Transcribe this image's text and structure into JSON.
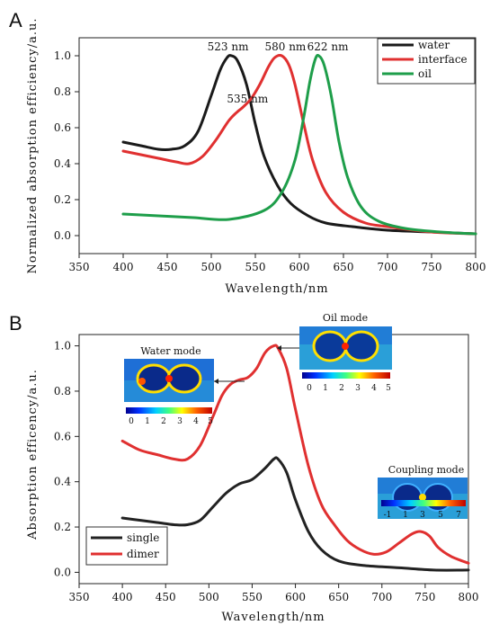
{
  "panels": [
    {
      "id": "A",
      "label": "A"
    },
    {
      "id": "B",
      "label": "B"
    }
  ],
  "chart_data": [
    {
      "panel": "A",
      "type": "line",
      "xlabel": "Wavelength/nm",
      "ylabel": "Normalized absorption efficiency/a.u.",
      "xlim": [
        350,
        800
      ],
      "ylim": [
        -0.1,
        1.1
      ],
      "xticks": [
        350,
        400,
        450,
        500,
        550,
        600,
        650,
        700,
        750,
        800
      ],
      "yticks": [
        0.0,
        0.2,
        0.4,
        0.6,
        0.8,
        1.0
      ],
      "ytick_labels": [
        "0.0",
        "0.2",
        "0.4",
        "0.6",
        "0.8",
        "1.0"
      ],
      "legend_position": "top-right",
      "series": [
        {
          "name": "water",
          "color": "#1a1a1a",
          "x": [
            400,
            420,
            440,
            455,
            470,
            485,
            500,
            510,
            518,
            523,
            530,
            540,
            550,
            560,
            575,
            590,
            610,
            630,
            660,
            700,
            750,
            800
          ],
          "y": [
            0.52,
            0.5,
            0.48,
            0.48,
            0.5,
            0.58,
            0.78,
            0.92,
            0.99,
            1.0,
            0.97,
            0.84,
            0.62,
            0.44,
            0.28,
            0.18,
            0.11,
            0.07,
            0.05,
            0.03,
            0.02,
            0.01
          ]
        },
        {
          "name": "interface",
          "color": "#e03030",
          "x": [
            400,
            420,
            440,
            460,
            475,
            490,
            505,
            520,
            530,
            535,
            545,
            555,
            565,
            572,
            580,
            588,
            595,
            605,
            615,
            630,
            650,
            675,
            700,
            750,
            800
          ],
          "y": [
            0.47,
            0.45,
            0.43,
            0.41,
            0.4,
            0.44,
            0.53,
            0.64,
            0.69,
            0.71,
            0.76,
            0.84,
            0.94,
            0.99,
            1.0,
            0.95,
            0.84,
            0.62,
            0.42,
            0.24,
            0.13,
            0.07,
            0.05,
            0.02,
            0.01
          ]
        },
        {
          "name": "oil",
          "color": "#1e9e4a",
          "x": [
            400,
            440,
            480,
            520,
            560,
            580,
            595,
            605,
            612,
            618,
            622,
            628,
            636,
            645,
            655,
            670,
            690,
            720,
            760,
            800
          ],
          "y": [
            0.12,
            0.11,
            0.1,
            0.09,
            0.14,
            0.24,
            0.42,
            0.66,
            0.86,
            0.98,
            1.0,
            0.95,
            0.78,
            0.52,
            0.32,
            0.16,
            0.08,
            0.04,
            0.02,
            0.01
          ]
        }
      ],
      "annotations": [
        {
          "text": "523 nm",
          "x": 523,
          "y": 1.0
        },
        {
          "text": "580 nm",
          "x": 580,
          "y": 1.0
        },
        {
          "text": "622 nm",
          "x": 622,
          "y": 1.0
        },
        {
          "text": "535 nm",
          "x": 535,
          "y": 0.75
        }
      ]
    },
    {
      "panel": "B",
      "type": "line",
      "xlabel": "Wavelength/nm",
      "ylabel": "Absorption efficency/a.u.",
      "xlim": [
        350,
        800
      ],
      "ylim": [
        -0.05,
        1.05
      ],
      "xticks": [
        350,
        400,
        450,
        500,
        550,
        600,
        650,
        700,
        750,
        800
      ],
      "yticks": [
        0.0,
        0.2,
        0.4,
        0.6,
        0.8,
        1.0
      ],
      "ytick_labels": [
        "0.0",
        "0.2",
        "0.4",
        "0.6",
        "0.8",
        "1.0"
      ],
      "legend_position": "bottom-left",
      "series": [
        {
          "name": "single",
          "color": "#222222",
          "x": [
            400,
            420,
            440,
            460,
            475,
            490,
            505,
            520,
            535,
            550,
            565,
            575,
            580,
            590,
            600,
            615,
            630,
            650,
            680,
            720,
            760,
            800
          ],
          "y": [
            0.24,
            0.23,
            0.22,
            0.21,
            0.21,
            0.23,
            0.29,
            0.35,
            0.39,
            0.41,
            0.46,
            0.5,
            0.5,
            0.44,
            0.32,
            0.18,
            0.1,
            0.05,
            0.03,
            0.02,
            0.01,
            0.01
          ]
        },
        {
          "name": "dimer",
          "color": "#e03030",
          "x": [
            400,
            420,
            440,
            460,
            475,
            490,
            505,
            515,
            525,
            535,
            545,
            555,
            565,
            575,
            580,
            590,
            600,
            615,
            630,
            645,
            660,
            675,
            690,
            705,
            720,
            735,
            745,
            755,
            765,
            780,
            800
          ],
          "y": [
            0.58,
            0.54,
            0.52,
            0.5,
            0.5,
            0.56,
            0.69,
            0.78,
            0.83,
            0.85,
            0.86,
            0.9,
            0.97,
            1.0,
            0.99,
            0.9,
            0.72,
            0.47,
            0.3,
            0.21,
            0.14,
            0.1,
            0.08,
            0.09,
            0.13,
            0.17,
            0.18,
            0.16,
            0.11,
            0.07,
            0.04
          ]
        }
      ]
    }
  ],
  "insets": [
    {
      "title": "Water mode",
      "colorbar_ticks": [
        "0",
        "1",
        "2",
        "3",
        "4",
        "5"
      ]
    },
    {
      "title": "Oil mode",
      "colorbar_ticks": [
        "0",
        "1",
        "2",
        "3",
        "4",
        "5"
      ]
    },
    {
      "title": "Coupling mode",
      "colorbar_ticks": [
        "-1",
        "1",
        "3",
        "5",
        "7"
      ]
    }
  ]
}
